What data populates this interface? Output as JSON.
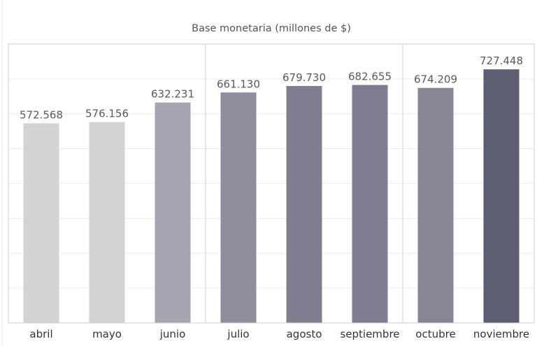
{
  "chart_data": {
    "type": "bar",
    "title": "Base monetaria (millones de $)",
    "xlabel": "",
    "ylabel": "",
    "categories": [
      "abril",
      "mayo",
      "junio",
      "julio",
      "agosto",
      "septiembre",
      "octubre",
      "noviembre"
    ],
    "values": [
      572568,
      576156,
      632231,
      661130,
      679730,
      682655,
      674209,
      727448
    ],
    "value_labels": [
      "572.568",
      "576.156",
      "632.231",
      "661.130",
      "679.730",
      "682.655",
      "674.209",
      "727.448"
    ],
    "ylim": [
      0,
      800000
    ],
    "grid": true,
    "legend": "none",
    "bar_colors": [
      "#d3d3d5",
      "#d3d3d5",
      "#a6a5b1",
      "#8f8d9c",
      "#807f92",
      "#7d7c90",
      "#878596",
      "#5e5e72"
    ],
    "colors": {
      "gridline": "#ececec",
      "frame": "#cfcfcf"
    }
  }
}
